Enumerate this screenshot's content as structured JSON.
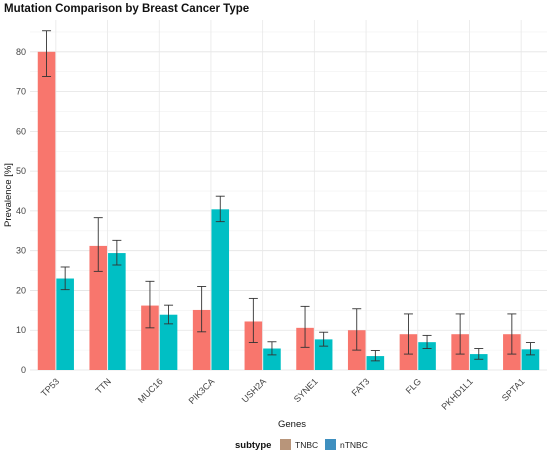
{
  "chart_data": {
    "type": "bar",
    "title": "Mutation Comparison by Breast Cancer Type",
    "xlabel": "Genes",
    "ylabel": "Prevalence [%]",
    "ylim": [
      0,
      88
    ],
    "yticks": [
      0,
      10,
      20,
      30,
      40,
      50,
      60,
      70,
      80
    ],
    "grid": true,
    "legend_placement": "bottom",
    "legend_title": "subtype",
    "categories": [
      "TP53",
      "TTN",
      "MUC16",
      "PIK3CA",
      "USH2A",
      "SYNE1",
      "FAT3",
      "FLG",
      "PKHD1L1",
      "SPTA1"
    ],
    "series": [
      {
        "name": "TNBC",
        "color": "#F8766D",
        "legend_color": "#B8957A",
        "values": [
          80,
          31.2,
          16.2,
          15.1,
          12.2,
          10.6,
          10,
          9,
          9,
          9
        ],
        "error_low": [
          73.8,
          24.8,
          10.6,
          9.6,
          6.9,
          5.7,
          5,
          4,
          4,
          4
        ],
        "error_high": [
          85.3,
          38.3,
          22.3,
          21,
          18,
          16,
          15.4,
          14.1,
          14.1,
          14.1
        ]
      },
      {
        "name": "nTNBC",
        "color": "#00BFC4",
        "legend_color": "#3E8FBF",
        "values": [
          23,
          29.4,
          13.9,
          40.4,
          5.4,
          7.7,
          3.5,
          7,
          4,
          5.2
        ],
        "error_low": [
          20.2,
          26.4,
          11.6,
          37.3,
          3.8,
          6,
          2.3,
          5.4,
          2.7,
          3.8
        ],
        "error_high": [
          25.9,
          32.6,
          16.3,
          43.7,
          7.1,
          9.5,
          4.9,
          8.7,
          5.4,
          6.9
        ]
      }
    ]
  }
}
